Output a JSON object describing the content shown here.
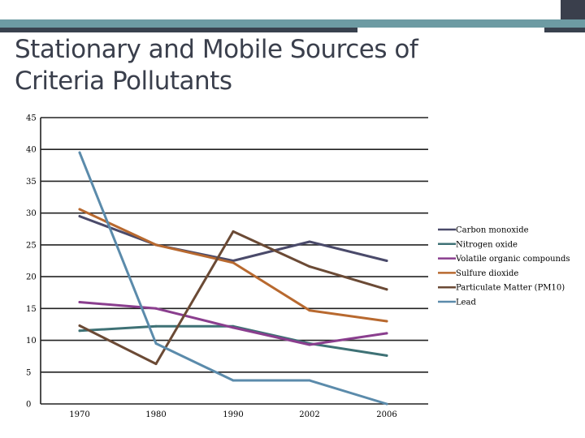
{
  "slide": {
    "title_line1": "Stationary and Mobile Sources of",
    "title_line2": "Criteria Pollutants"
  },
  "colors": {
    "accent_teal": "#6d9ba3",
    "accent_slate": "#39414e"
  },
  "chart_data": {
    "type": "line",
    "title": "",
    "xlabel": "",
    "ylabel": "",
    "x": [
      "1970",
      "1980",
      "1990",
      "2002",
      "2006"
    ],
    "ylim": [
      0,
      45
    ],
    "yticks": [
      "0",
      "5",
      "10",
      "15",
      "20",
      "25",
      "30",
      "35",
      "40",
      "45"
    ],
    "grid": true,
    "legend_position": "right",
    "series": [
      {
        "name": "Carbon monoxide",
        "color": "#4a4a6a",
        "values": [
          29.5,
          25.0,
          22.5,
          25.5,
          22.5
        ]
      },
      {
        "name": "Nitrogen oxide",
        "color": "#3e7175",
        "values": [
          11.5,
          12.2,
          12.2,
          9.5,
          7.6
        ]
      },
      {
        "name": "Volatile organic compounds",
        "color": "#8a3e8e",
        "values": [
          16.0,
          15.0,
          12.0,
          9.3,
          11.1
        ]
      },
      {
        "name": "Sulfure dioxide",
        "color": "#b8692f",
        "values": [
          30.6,
          25.0,
          22.2,
          14.7,
          13.0
        ]
      },
      {
        "name": "Particulate Matter (PM10)",
        "color": "#6b4a35",
        "values": [
          12.3,
          6.3,
          27.1,
          21.6,
          18.0
        ]
      },
      {
        "name": "Lead",
        "color": "#5b8bab",
        "values": [
          39.5,
          9.5,
          3.7,
          3.7,
          0.0
        ]
      }
    ]
  }
}
